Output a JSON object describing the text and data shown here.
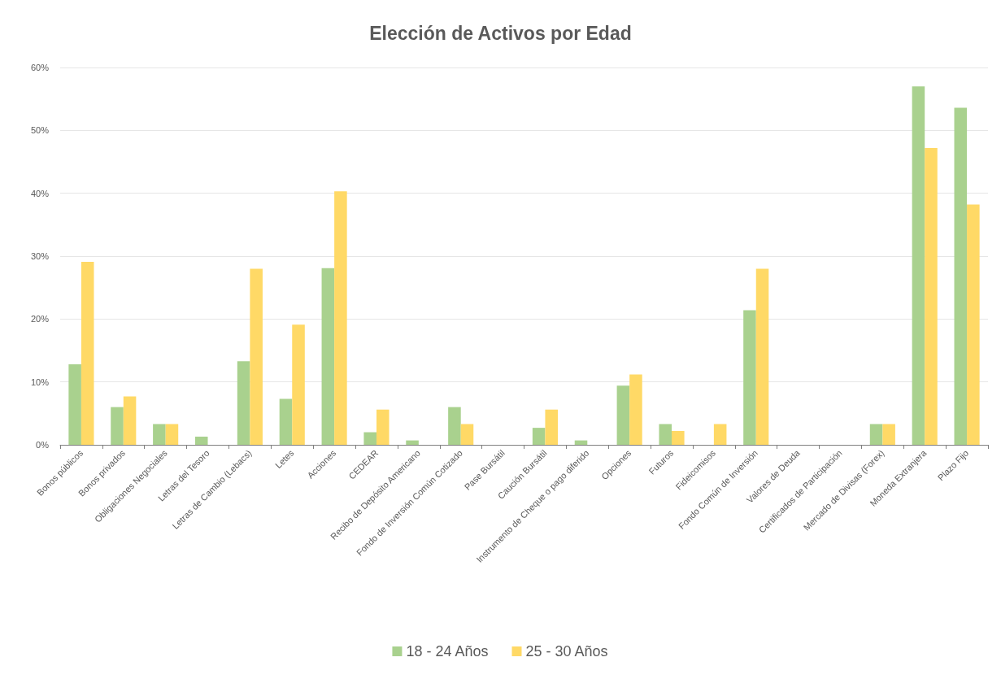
{
  "chart_data": {
    "type": "bar",
    "title": "Elección de Activos por Edad",
    "categories": [
      "Bonos públicos",
      "Bonos privados",
      "Obligaciones Negociales",
      "Letras del Tesoro",
      "Letras de Cambio (Lebacs)",
      "Letes",
      "Acciones",
      "CEDEAR",
      "Recibo de Depósito Americano",
      "Fondo de Inversión Común Cotizado",
      "Pase Bursátil",
      "Caución Bursátil",
      "Instrumento de Cheque o pago diferido",
      "Opciones",
      "Futuros",
      "Fideicomisos",
      "Fondo Común de Inversión",
      "Valores de Deuda",
      "Certificados de Participación",
      "Mercado de Divisas (Forex)",
      "Moneda Extranjera",
      "Plazo Fijo"
    ],
    "series": [
      {
        "name": "18 - 24 Años",
        "color": "#a9d18e",
        "values": [
          12.8,
          6.0,
          3.3,
          1.3,
          13.3,
          7.3,
          28.1,
          2.0,
          0.7,
          6.0,
          0,
          2.7,
          0.7,
          9.4,
          3.3,
          0,
          21.4,
          0,
          0,
          3.3,
          57.0,
          53.6
        ]
      },
      {
        "name": "25 - 30 Años",
        "color": "#ffd966",
        "values": [
          29.1,
          7.7,
          3.3,
          0,
          28.0,
          19.1,
          40.3,
          5.6,
          0,
          3.3,
          0,
          5.6,
          0,
          11.2,
          2.2,
          3.3,
          28.0,
          0,
          0,
          3.3,
          47.2,
          38.2
        ]
      }
    ],
    "ylim": [
      0,
      60
    ],
    "yticks": [
      {
        "value": 0,
        "label": "0%"
      },
      {
        "value": 10,
        "label": "10%"
      },
      {
        "value": 20,
        "label": "20%"
      },
      {
        "value": 30,
        "label": "30%"
      },
      {
        "value": 40,
        "label": "40%"
      },
      {
        "value": 50,
        "label": "50%"
      },
      {
        "value": 60,
        "label": "60%"
      }
    ],
    "grid": "y",
    "legend": "bottom"
  }
}
